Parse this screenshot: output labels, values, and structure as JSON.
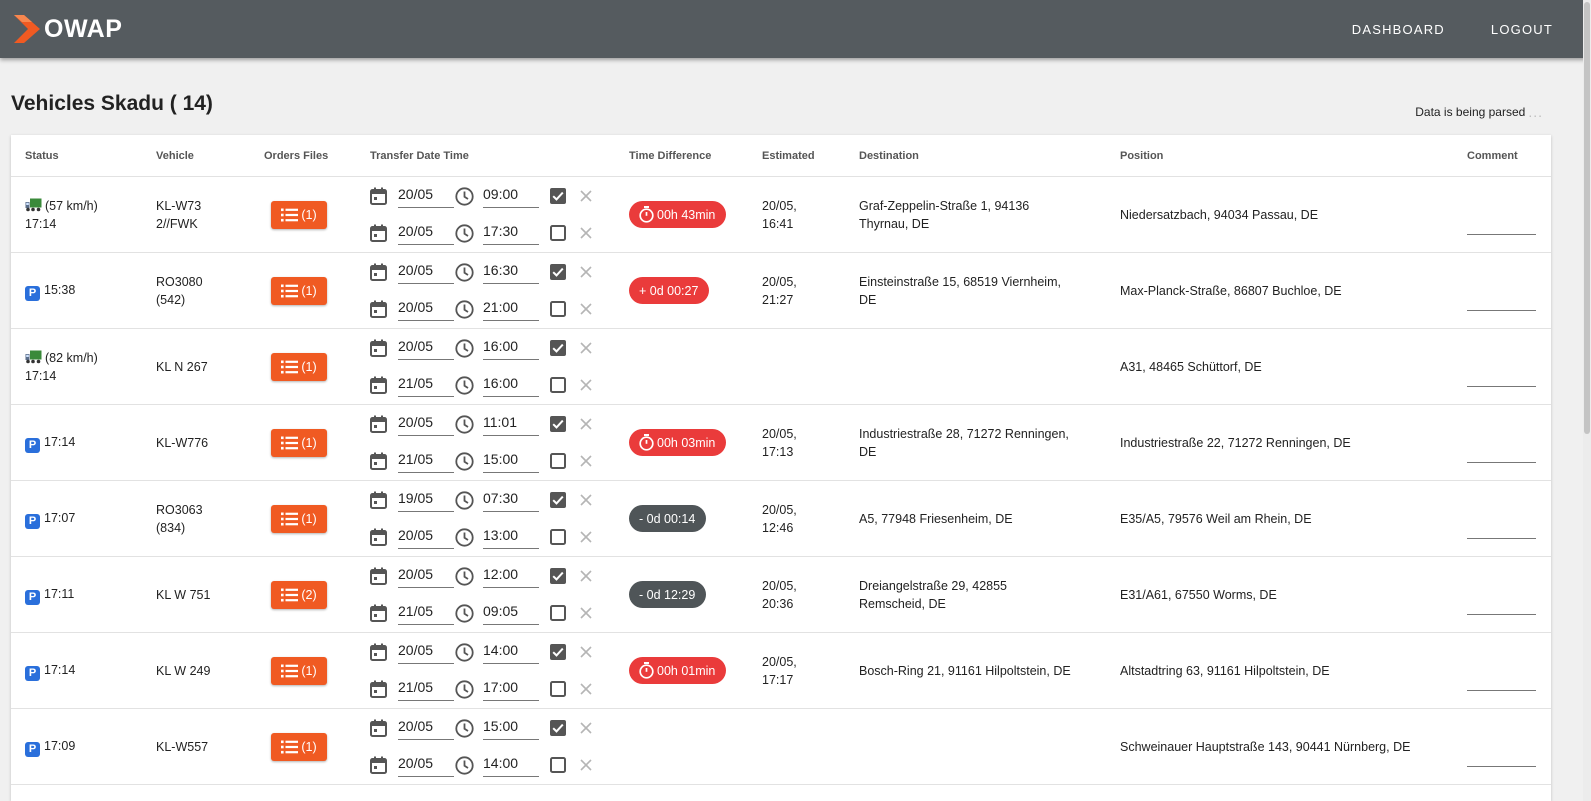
{
  "header": {
    "app_name": "OWAP",
    "nav": [
      {
        "label": "DASHBOARD"
      },
      {
        "label": "LOGOUT"
      }
    ]
  },
  "page": {
    "title": "Vehicles Skadu ( 14)",
    "parse_status": "Data is being parsed",
    "parse_dots": "..."
  },
  "table": {
    "columns": [
      "Status",
      "Vehicle",
      "Orders Files",
      "Transfer Date Time",
      "Time Difference",
      "Estimated",
      "Destination",
      "Position",
      "Comment"
    ],
    "rows": [
      {
        "status_type": "moving",
        "speed": "(57 km/h)",
        "time": "17:14",
        "vehicle": "KL-W732//FWK",
        "orders": "(1)",
        "transfer": [
          {
            "date": "20/05",
            "time": "09:00",
            "checked": true
          },
          {
            "date": "20/05",
            "time": "17:30",
            "checked": false
          }
        ],
        "diff": {
          "text": "00h 43min",
          "type": "timer"
        },
        "estimated": [
          "20/05,",
          "16:41"
        ],
        "destination": "Graf-Zeppelin-Straße 1, 94136 Thyrnau, DE",
        "position": "Niedersatzbach, 94034 Passau, DE",
        "comment": ""
      },
      {
        "status_type": "parked",
        "speed": "",
        "time": "15:38",
        "vehicle": "RO3080 (542)",
        "orders": "(1)",
        "transfer": [
          {
            "date": "20/05",
            "time": "16:30",
            "checked": true
          },
          {
            "date": "20/05",
            "time": "21:00",
            "checked": false
          }
        ],
        "diff": {
          "text": "+ 0d 00:27",
          "type": "late"
        },
        "estimated": [
          "20/05,",
          "21:27"
        ],
        "destination": "Einsteinstraße 15, 68519 Viernheim, DE",
        "position": "Max-Planck-Straße, 86807 Buchloe, DE",
        "comment": ""
      },
      {
        "status_type": "moving",
        "speed": "(82 km/h)",
        "time": "17:14",
        "vehicle": "KL N 267",
        "orders": "(1)",
        "transfer": [
          {
            "date": "20/05",
            "time": "16:00",
            "checked": true
          },
          {
            "date": "21/05",
            "time": "16:00",
            "checked": false
          }
        ],
        "diff": null,
        "estimated": [
          "",
          ""
        ],
        "destination": "",
        "position": "A31, 48465 Schüttorf, DE",
        "comment": ""
      },
      {
        "status_type": "parked",
        "speed": "",
        "time": "17:14",
        "vehicle": "KL-W776",
        "orders": "(1)",
        "transfer": [
          {
            "date": "20/05",
            "time": "11:01",
            "checked": true
          },
          {
            "date": "21/05",
            "time": "15:00",
            "checked": false
          }
        ],
        "diff": {
          "text": "00h 03min",
          "type": "timer"
        },
        "estimated": [
          "20/05,",
          "17:13"
        ],
        "destination": "Industriestraße 28, 71272 Renningen, DE",
        "position": "Industriestraße 22, 71272 Renningen, DE",
        "comment": ""
      },
      {
        "status_type": "parked",
        "speed": "",
        "time": "17:07",
        "vehicle": "RO3063 (834)",
        "orders": "(1)",
        "transfer": [
          {
            "date": "19/05",
            "time": "07:30",
            "checked": true
          },
          {
            "date": "20/05",
            "time": "13:00",
            "checked": false
          }
        ],
        "diff": {
          "text": "- 0d 00:14",
          "type": "early"
        },
        "estimated": [
          "20/05,",
          "12:46"
        ],
        "destination": "A5, 77948 Friesenheim, DE",
        "position": "E35/A5, 79576 Weil am Rhein, DE",
        "comment": ""
      },
      {
        "status_type": "parked",
        "speed": "",
        "time": "17:11",
        "vehicle": "KL W 751",
        "orders": "(2)",
        "transfer": [
          {
            "date": "20/05",
            "time": "12:00",
            "checked": true
          },
          {
            "date": "21/05",
            "time": "09:05",
            "checked": false
          }
        ],
        "diff": {
          "text": "- 0d 12:29",
          "type": "early"
        },
        "estimated": [
          "20/05,",
          "20:36"
        ],
        "destination": "Dreiangelstraße 29, 42855 Remscheid, DE",
        "position": "E31/A61, 67550 Worms, DE",
        "comment": ""
      },
      {
        "status_type": "parked",
        "speed": "",
        "time": "17:14",
        "vehicle": "KL W 249",
        "orders": "(1)",
        "transfer": [
          {
            "date": "20/05",
            "time": "14:00",
            "checked": true
          },
          {
            "date": "21/05",
            "time": "17:00",
            "checked": false
          }
        ],
        "diff": {
          "text": "00h 01min",
          "type": "timer"
        },
        "estimated": [
          "20/05,",
          "17:17"
        ],
        "destination": "Bosch-Ring 21, 91161 Hilpoltstein, DE",
        "position": "Altstadtring 63, 91161 Hilpoltstein, DE",
        "comment": ""
      },
      {
        "status_type": "parked",
        "speed": "",
        "time": "17:09",
        "vehicle": "KL-W557",
        "orders": "(1)",
        "transfer": [
          {
            "date": "20/05",
            "time": "15:00",
            "checked": true
          },
          {
            "date": "20/05",
            "time": "14:00",
            "checked": false
          }
        ],
        "diff": null,
        "estimated": [
          "",
          ""
        ],
        "destination": "",
        "position": "Schweinauer Hauptstraße 143, 90441 Nürnberg, DE",
        "comment": ""
      }
    ]
  },
  "colors": {
    "topbar": "#555b5f",
    "accent_orange": "#f05a22",
    "pill_red": "#ea3b3b",
    "pill_dark": "#4f5558",
    "parking_blue": "#2a6fdb",
    "truck_green": "#3a8a3a"
  },
  "icons": {
    "logo": "chevron-logo-icon",
    "moving": "truck-icon",
    "parked": "parking-icon",
    "orders": "list-icon",
    "date": "calendar-icon",
    "time": "clock-icon",
    "timer": "stopwatch-icon",
    "remove": "close-icon"
  }
}
